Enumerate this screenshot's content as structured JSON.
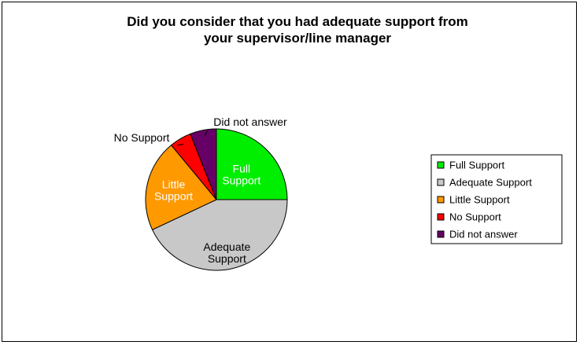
{
  "chart_data": {
    "type": "pie",
    "title_lines": [
      "Did you consider that you had adequate support from",
      "your supervisor/line manager"
    ],
    "categories": [
      "Full Support",
      "Adequate Support",
      "Little Support",
      "No Support",
      "Did not answer"
    ],
    "values": [
      25,
      43,
      21,
      5,
      6
    ],
    "colors": [
      "#00ee00",
      "#c8c8c8",
      "#ff9900",
      "#ff0000",
      "#660066"
    ],
    "slice_labels": [
      [
        "Full",
        "Support"
      ],
      [
        "Adequate",
        "Support"
      ],
      [
        "Little",
        "Support"
      ],
      [],
      []
    ],
    "callout_labels": [
      "",
      "",
      "",
      "No Support",
      "Did not answer"
    ],
    "legend": {
      "position": "right",
      "entries": [
        "Full Support",
        "Adequate Support",
        "Little Support",
        "No Support",
        "Did not answer"
      ]
    }
  }
}
